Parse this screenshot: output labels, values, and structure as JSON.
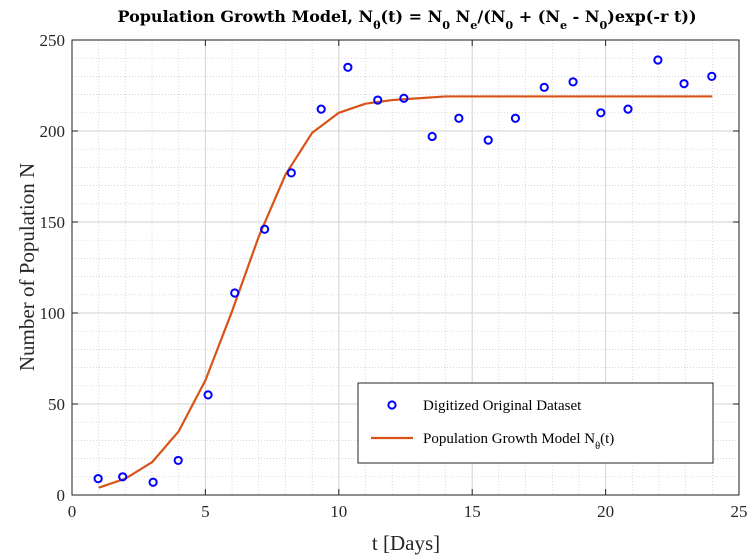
{
  "chart_data": {
    "type": "scatter",
    "title_parts": [
      {
        "t": "Population Growth Model, N",
        "s": "n"
      },
      {
        "t": "θ",
        "s": "sub"
      },
      {
        "t": "(t) = N",
        "s": "n"
      },
      {
        "t": "0",
        "s": "sub"
      },
      {
        "t": " N",
        "s": "n"
      },
      {
        "t": "e",
        "s": "sub"
      },
      {
        "t": "/(N",
        "s": "n"
      },
      {
        "t": "0",
        "s": "sub"
      },
      {
        "t": " + (N",
        "s": "n"
      },
      {
        "t": "e",
        "s": "sub"
      },
      {
        "t": " - N",
        "s": "n"
      },
      {
        "t": "0",
        "s": "sub"
      },
      {
        "t": ")exp(-r t))",
        "s": "n"
      }
    ],
    "xlabel": "t [Days]",
    "ylabel": "Number of Population N",
    "xlim": [
      0,
      25
    ],
    "ylim": [
      0,
      250
    ],
    "x_ticks": [
      0,
      5,
      10,
      15,
      20,
      25
    ],
    "y_ticks": [
      0,
      50,
      100,
      150,
      200,
      250
    ],
    "grid": true,
    "minor_grid": true,
    "legend_position": "bottom-right",
    "series": [
      {
        "name": "Digitized Original Dataset",
        "kind": "marker",
        "color": "#0000ff",
        "x": [
          0.98,
          1.9,
          3.04,
          3.98,
          5.1,
          6.1,
          7.22,
          8.22,
          9.34,
          10.34,
          11.46,
          12.44,
          13.5,
          14.5,
          15.6,
          16.62,
          17.7,
          18.78,
          19.82,
          20.84,
          21.96,
          22.94,
          23.98
        ],
        "y": [
          9,
          10,
          7,
          19,
          55,
          111,
          146,
          177,
          212,
          235,
          217,
          218,
          197,
          207,
          195,
          207,
          224,
          227,
          210,
          212,
          239,
          226,
          230
        ]
      },
      {
        "name_parts": [
          {
            "t": "Population Growth Model N",
            "s": "n"
          },
          {
            "t": "θ",
            "s": "sub"
          },
          {
            "t": "(t)",
            "s": "n"
          }
        ],
        "kind": "line",
        "color": "#d95319",
        "x": [
          1,
          2,
          3,
          4,
          5,
          6,
          7,
          8,
          9,
          10,
          11,
          12,
          13,
          14,
          15,
          16,
          17,
          18,
          19,
          20,
          21,
          22,
          23,
          24
        ],
        "y": [
          4,
          9,
          18,
          35,
          63,
          101,
          142,
          176,
          199,
          210,
          215,
          217,
          218,
          219,
          219,
          219,
          219,
          219,
          219,
          219,
          219,
          219,
          219,
          219
        ]
      }
    ]
  }
}
